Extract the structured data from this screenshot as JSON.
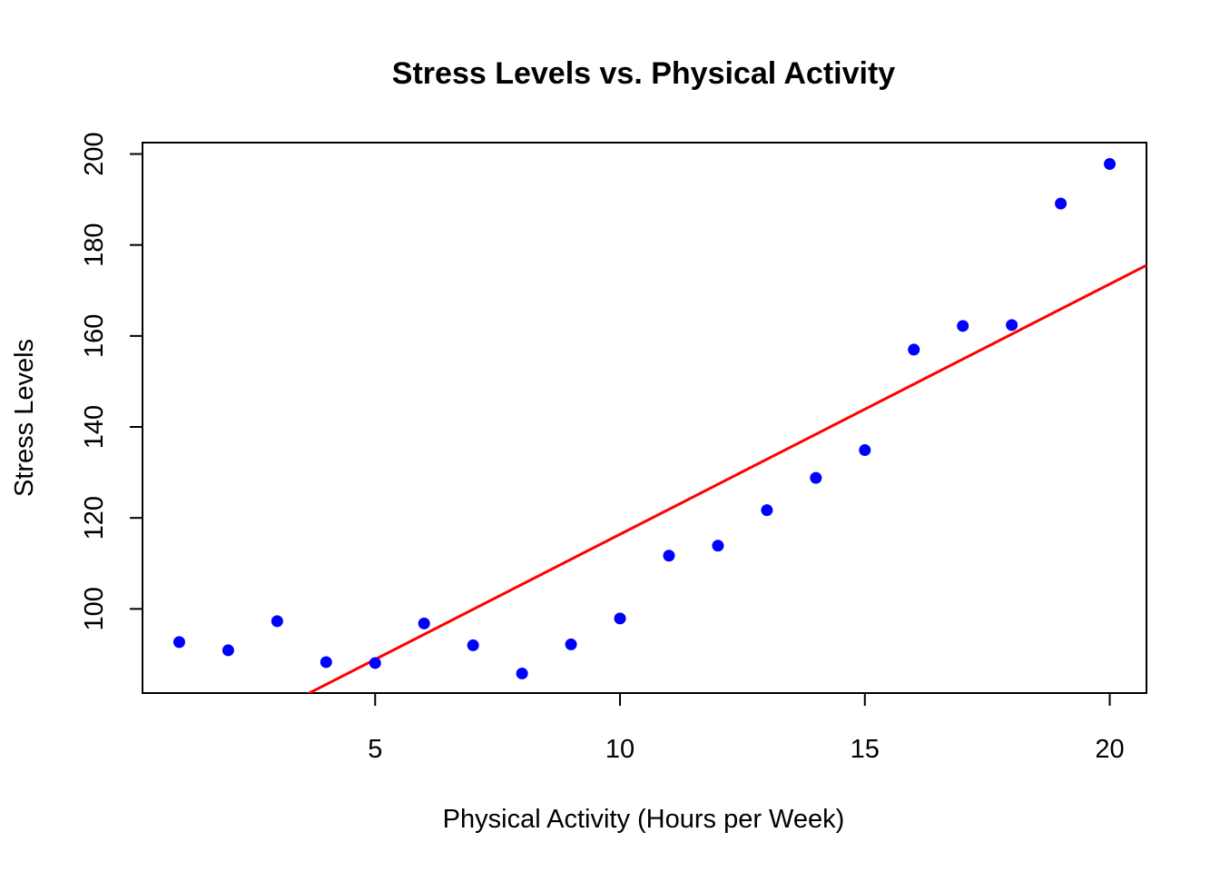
{
  "chart_data": {
    "type": "scatter",
    "title": "Stress Levels vs. Physical Activity",
    "xlabel": "Physical Activity (Hours per Week)",
    "ylabel": "Stress Levels",
    "xlim": [
      0.25,
      20.75
    ],
    "ylim": [
      81.5,
      202.5
    ],
    "xticks": [
      5,
      10,
      15,
      20
    ],
    "yticks": [
      100,
      120,
      140,
      160,
      180,
      200
    ],
    "grid": false,
    "points": [
      {
        "x": 1,
        "y": 92.7
      },
      {
        "x": 2,
        "y": 90.9
      },
      {
        "x": 3,
        "y": 97.3
      },
      {
        "x": 4,
        "y": 88.3
      },
      {
        "x": 5,
        "y": 88.1
      },
      {
        "x": 6,
        "y": 96.8
      },
      {
        "x": 7,
        "y": 92.0
      },
      {
        "x": 8,
        "y": 85.8
      },
      {
        "x": 9,
        "y": 92.2
      },
      {
        "x": 10,
        "y": 97.9
      },
      {
        "x": 11,
        "y": 111.7
      },
      {
        "x": 12,
        "y": 113.9
      },
      {
        "x": 13,
        "y": 121.7
      },
      {
        "x": 14,
        "y": 128.8
      },
      {
        "x": 15,
        "y": 134.9
      },
      {
        "x": 16,
        "y": 157.0
      },
      {
        "x": 17,
        "y": 162.2
      },
      {
        "x": 18,
        "y": 162.4
      },
      {
        "x": 19,
        "y": 189.1
      },
      {
        "x": 20,
        "y": 197.8
      }
    ],
    "regression_line": {
      "intercept": 61.4,
      "slope": 5.5
    },
    "colors": {
      "points": "#0000ff",
      "line": "#ff0000",
      "axes": "#000000"
    }
  }
}
